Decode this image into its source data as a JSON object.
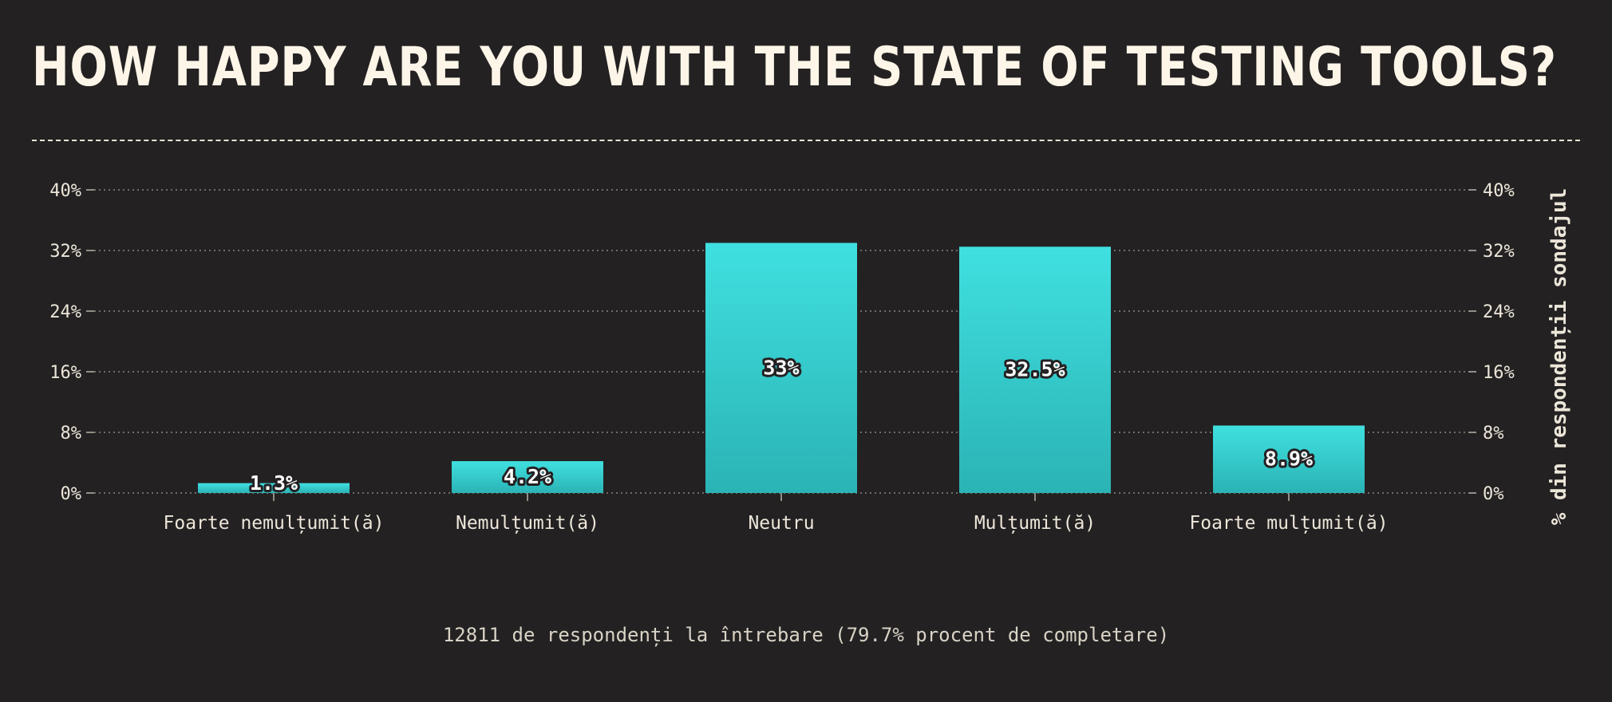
{
  "title": "HOW HAPPY ARE YOU WITH THE STATE OF TESTING TOOLS?",
  "footer_note": "12811 de respondenți la întrebare (79.7% procent de completare)",
  "colors": {
    "background": "#242123",
    "bar_top": "#40e0e0",
    "bar_bottom": "#2bb3b5",
    "text": "#ece6d9"
  },
  "chart_data": {
    "type": "bar",
    "categories": [
      "Foarte nemulțumit(ă)",
      "Nemulțumit(ă)",
      "Neutru",
      "Mulțumit(ă)",
      "Foarte mulțumit(ă)"
    ],
    "values": [
      1.3,
      4.2,
      33,
      32.5,
      8.9
    ],
    "value_labels": [
      "1.3%",
      "4.2%",
      "33%",
      "32.5%",
      "8.9%"
    ],
    "ylabel": "% din respondenții sondajul",
    "ylim": [
      0,
      40
    ],
    "y_ticks": [
      0,
      8,
      16,
      24,
      32,
      40
    ],
    "y_tick_labels": [
      "0%",
      "8%",
      "16%",
      "24%",
      "32%",
      "40%"
    ],
    "grid": true,
    "y_axis_both_sides": true
  }
}
